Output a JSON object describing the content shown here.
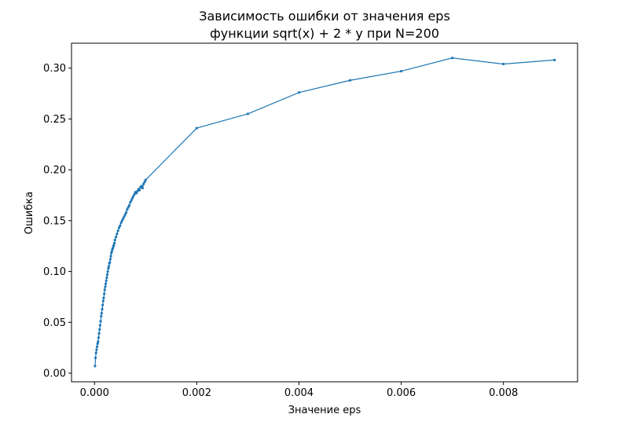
{
  "chart_data": {
    "type": "line",
    "title": "Зависимость ошибки от значения eps",
    "subtitle": "функции sqrt(x) + 2 * y при N=200",
    "xlabel": "Значение eps",
    "ylabel": "Ошибка",
    "xlim": [
      -0.00045,
      0.00945
    ],
    "ylim": [
      -0.0085,
      0.3245
    ],
    "xticks": [
      0.0,
      0.002,
      0.004,
      0.006,
      0.008
    ],
    "xtick_labels": [
      "0.000",
      "0.002",
      "0.004",
      "0.006",
      "0.008"
    ],
    "yticks": [
      0.0,
      0.05,
      0.1,
      0.15,
      0.2,
      0.25,
      0.3
    ],
    "ytick_labels": [
      "0.00",
      "0.05",
      "0.10",
      "0.15",
      "0.20",
      "0.25",
      "0.30"
    ],
    "grid": false,
    "legend": "none",
    "series": [
      {
        "color": "#1f77b4",
        "x": [
          1e-05,
          2e-05,
          3e-05,
          4e-05,
          5e-05,
          6e-05,
          7e-05,
          8e-05,
          9e-05,
          0.0001,
          0.00011,
          0.00012,
          0.00013,
          0.00014,
          0.00015,
          0.00016,
          0.00017,
          0.00018,
          0.00019,
          0.0002,
          0.00021,
          0.00022,
          0.00023,
          0.00024,
          0.00025,
          0.00026,
          0.00027,
          0.00028,
          0.00029,
          0.0003,
          0.00031,
          0.00032,
          0.00033,
          0.00034,
          0.00035,
          0.00036,
          0.00037,
          0.00038,
          0.00039,
          0.0004,
          0.00042,
          0.00044,
          0.00046,
          0.00048,
          0.0005,
          0.00052,
          0.00054,
          0.00056,
          0.00058,
          0.0006,
          0.00062,
          0.00064,
          0.00066,
          0.00068,
          0.0007,
          0.00072,
          0.00074,
          0.00076,
          0.00078,
          0.0008,
          0.00082,
          0.00084,
          0.00086,
          0.00088,
          0.0009,
          0.00092,
          0.00094,
          0.00096,
          0.00098,
          0.001,
          0.002,
          0.003,
          0.004,
          0.005,
          0.006,
          0.007,
          0.008,
          0.009
        ],
        "y": [
          0.007,
          0.015,
          0.02,
          0.023,
          0.026,
          0.029,
          0.031,
          0.035,
          0.039,
          0.043,
          0.047,
          0.051,
          0.056,
          0.059,
          0.063,
          0.067,
          0.071,
          0.074,
          0.078,
          0.082,
          0.085,
          0.088,
          0.091,
          0.094,
          0.097,
          0.1,
          0.103,
          0.105,
          0.108,
          0.109,
          0.112,
          0.115,
          0.118,
          0.12,
          0.122,
          0.123,
          0.125,
          0.126,
          0.128,
          0.131,
          0.134,
          0.137,
          0.14,
          0.143,
          0.145,
          0.148,
          0.15,
          0.152,
          0.154,
          0.156,
          0.158,
          0.161,
          0.163,
          0.165,
          0.168,
          0.17,
          0.172,
          0.174,
          0.176,
          0.178,
          0.177,
          0.179,
          0.181,
          0.18,
          0.183,
          0.184,
          0.182,
          0.186,
          0.188,
          0.19,
          0.241,
          0.255,
          0.276,
          0.288,
          0.297,
          0.31,
          0.304,
          0.308
        ]
      }
    ]
  }
}
